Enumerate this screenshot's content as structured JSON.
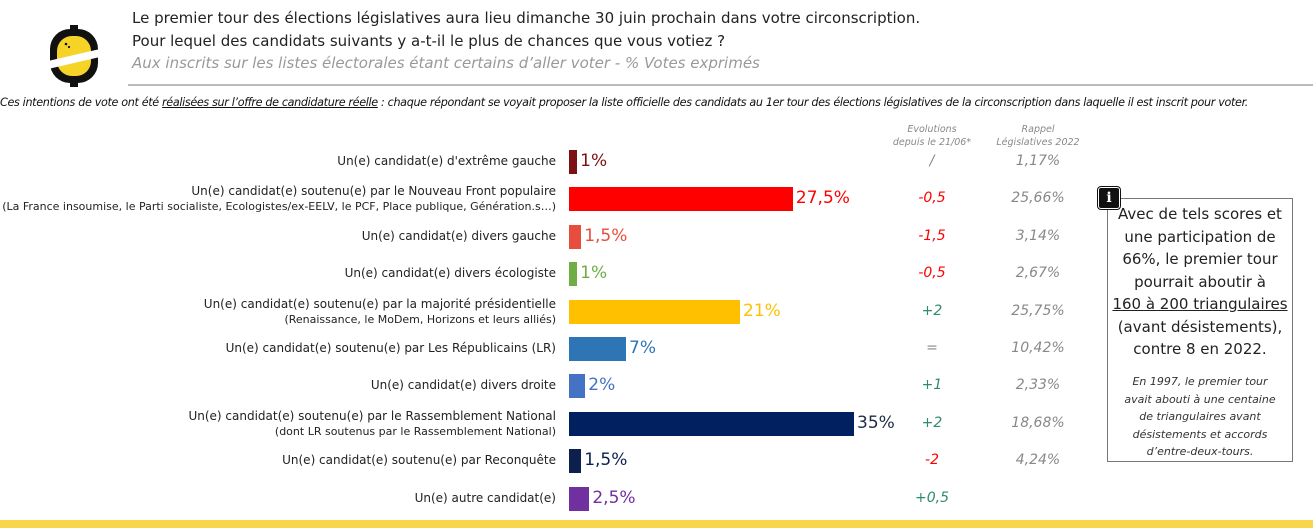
{
  "header": {
    "line1": "Le premier tour des élections législatives aura lieu dimanche 30 juin prochain dans votre circonscription.",
    "line2": "Pour lequel des candidats suivants y a-t-il le plus de chances que vous votiez ?",
    "line3": "Aux inscrits sur les listes électorales étant certains d’aller voter - % Votes exprimés"
  },
  "note": {
    "before": "Ces intentions de vote ont été ",
    "underlined": "réalisées sur l’offre de candidature réelle",
    "after": " : chaque répondant se voyait proposer la liste officielle des candidats au 1er tour des élections législatives de la circonscription dans laquelle il est inscrit pour voter."
  },
  "columns": {
    "evolutions_1": "Evolutions",
    "evolutions_2": "depuis le 21/06*",
    "rappel_1": "Rappel",
    "rappel_2": "Législatives 2022"
  },
  "chart_data": {
    "type": "bar",
    "orientation": "horizontal",
    "categories": [
      {
        "label": "Un(e) candidat(e) d'extrême gauche",
        "sub": ""
      },
      {
        "label": "Un(e) candidat(e) soutenu(e) par le Nouveau Front populaire",
        "sub": "(La France insoumise, le Parti socialiste, Ecologistes/ex-EELV, le PCF, Place publique, Génération.s…)"
      },
      {
        "label": "Un(e) candidat(e) divers gauche",
        "sub": ""
      },
      {
        "label": "Un(e) candidat(e) divers écologiste",
        "sub": ""
      },
      {
        "label": "Un(e) candidat(e) soutenu(e) par la majorité présidentielle",
        "sub": "(Renaissance, le MoDem, Horizons et leurs alliés)"
      },
      {
        "label": "Un(e) candidat(e) soutenu(e) par Les Républicains (LR)",
        "sub": ""
      },
      {
        "label": "Un(e) candidat(e) divers droite",
        "sub": ""
      },
      {
        "label": "Un(e) candidat(e)  soutenu(e) par le Rassemblement National",
        "sub": "(dont LR soutenus par le Rassemblement National)"
      },
      {
        "label": "Un(e) candidat(e) soutenu(e) par Reconquête",
        "sub": ""
      },
      {
        "label": "Un(e) autre candidat(e)",
        "sub": ""
      }
    ],
    "values": [
      1,
      27.5,
      1.5,
      1,
      21,
      7,
      2,
      35,
      1.5,
      2.5
    ],
    "value_labels": [
      "1%",
      "27,5%",
      "1,5%",
      "1%",
      "21%",
      "7%",
      "2%",
      "35%",
      "1,5%",
      "2,5%"
    ],
    "colors": [
      "#7b1113",
      "#ff0000",
      "#e84c3d",
      "#70ad47",
      "#ffc000",
      "#2e75b6",
      "#4472c4",
      "#002060",
      "#0c1f4d",
      "#7030a0"
    ],
    "label_colors": [
      "#7b1113",
      "#ff0000",
      "#e84c3d",
      "#70ad47",
      "#ffc000",
      "#2e75b6",
      "#4472c4",
      "#1f2a44",
      "#0c1f4d",
      "#7030a0"
    ],
    "evolutions": [
      "/",
      "-0,5",
      "-1,5",
      "-0,5",
      "+2",
      "=",
      "+1",
      "+2",
      "-2",
      "+0,5"
    ],
    "rappel_2022": [
      "1,17%",
      "25,66%",
      "3,14%",
      "2,67%",
      "25,75%",
      "10,42%",
      "2,33%",
      "18,68%",
      "4,24%",
      ""
    ],
    "xlim": [
      0,
      35
    ],
    "evolution_colors": {
      "negative": "#ff0000",
      "positive": "#2e8b6b",
      "neutral": "#888888"
    }
  },
  "infobox": {
    "icon": "info-icon",
    "icon_glyph": "i",
    "l1": "Avec de tels scores et",
    "l2": "une participation de",
    "l3": "66%, le premier tour",
    "l4": "pourrait aboutir à",
    "l5": "160 à 200 triangulaires",
    "l6": "(avant désistements),",
    "l7": "contre 8 en 2022.",
    "s1": "En 1997, le premier tour",
    "s2": "avait abouti à une centaine",
    "s3": "de triangulaires avant",
    "s4": "désistements et accords",
    "s5": "d’entre-deux-tours."
  },
  "colors": {
    "footer": "#f8d64a",
    "logo_yellow": "#f5d327"
  }
}
